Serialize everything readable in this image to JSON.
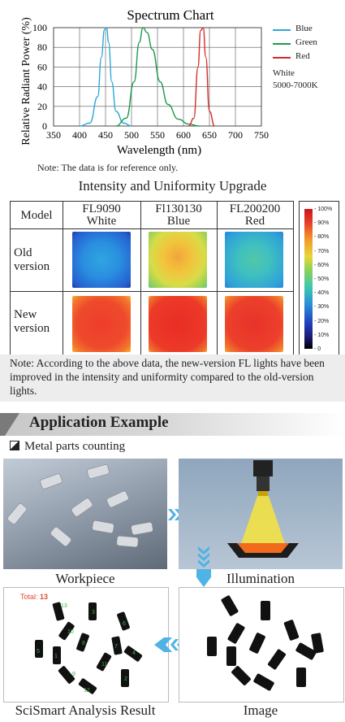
{
  "spectrum": {
    "title": "Spectrum Chart",
    "ylabel": "Relative Radiant Power (%)",
    "xlabel": "Wavelength (nm)",
    "note": "Note: The data is for reference only.",
    "legend": [
      {
        "name": "Blue",
        "color": "#2aa8d8"
      },
      {
        "name": "Green",
        "color": "#1e9a4a"
      },
      {
        "name": "Red",
        "color": "#d62a2a"
      },
      {
        "name": "White",
        "color": "#333333"
      }
    ],
    "white_range": "5000-7000K"
  },
  "chart_data": {
    "type": "line",
    "title": "Spectrum Chart",
    "xlabel": "Wavelength (nm)",
    "ylabel": "Relative Radiant Power (%)",
    "xlim": [
      350,
      750
    ],
    "ylim": [
      0,
      100
    ],
    "x_ticks": [
      350,
      400,
      450,
      500,
      550,
      600,
      650,
      700,
      750
    ],
    "y_ticks": [
      0,
      20,
      40,
      60,
      80,
      100
    ],
    "grid": true,
    "legend_position": "right",
    "series": [
      {
        "name": "Blue",
        "color": "#2aa8d8",
        "x": [
          400,
          420,
          435,
          442,
          448,
          452,
          456,
          462,
          470,
          485,
          500
        ],
        "y": [
          0,
          3,
          30,
          70,
          98,
          100,
          85,
          45,
          15,
          3,
          0
        ]
      },
      {
        "name": "Green",
        "color": "#1e9a4a",
        "x": [
          470,
          490,
          505,
          515,
          522,
          530,
          540,
          555,
          570,
          590,
          610,
          630
        ],
        "y": [
          0,
          8,
          45,
          85,
          100,
          95,
          78,
          45,
          22,
          7,
          2,
          0
        ]
      },
      {
        "name": "Red",
        "color": "#d62a2a",
        "x": [
          610,
          620,
          628,
          633,
          638,
          643,
          650,
          660
        ],
        "y": [
          0,
          8,
          60,
          97,
          100,
          70,
          15,
          0
        ]
      }
    ]
  },
  "uniformity": {
    "title": "Intensity and Uniformity Upgrade",
    "header_model": "Model",
    "columns": [
      {
        "line1": "FL9090",
        "line2": "White"
      },
      {
        "line1": "Fl130130",
        "line2": "Blue"
      },
      {
        "line1": "FL200200",
        "line2": "Red"
      }
    ],
    "rows": [
      {
        "line1": "Old",
        "line2": "version"
      },
      {
        "line1": "New",
        "line2": "version"
      }
    ],
    "colorbar_ticks": [
      "100%",
      "90%",
      "80%",
      "70%",
      "60%",
      "50%",
      "40%",
      "30%",
      "20%",
      "10%",
      "0"
    ],
    "note": "Note: According to the above data, the new-version FL lights have been improved in the intensity and uniformity compared to the old-version lights."
  },
  "application": {
    "title": "Application Example",
    "subtitle": "Metal parts counting",
    "captions": {
      "workpiece": "Workpiece",
      "illumination": "Illumination",
      "image": "Image",
      "result": "SciSmart Analysis Result"
    },
    "total_label": "Total:",
    "total_value": "13"
  }
}
